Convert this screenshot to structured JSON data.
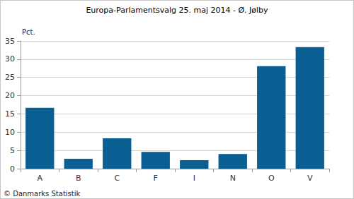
{
  "chart_data": {
    "type": "bar",
    "title": "Europa-Parlamentsvalg 25. maj 2014 - Ø. Jølby",
    "ylabel": "Pct.",
    "categories": [
      "A",
      "B",
      "C",
      "F",
      "I",
      "N",
      "O",
      "V"
    ],
    "values": [
      16.7,
      2.7,
      8.3,
      4.6,
      2.3,
      4.0,
      28.1,
      33.3
    ],
    "color": "#0a5f92",
    "ylim": [
      0,
      35
    ],
    "yticks": [
      0,
      5,
      10,
      15,
      20,
      25,
      30,
      35
    ],
    "grid": true,
    "annotations": [
      "© Danmarks Statistik"
    ]
  }
}
